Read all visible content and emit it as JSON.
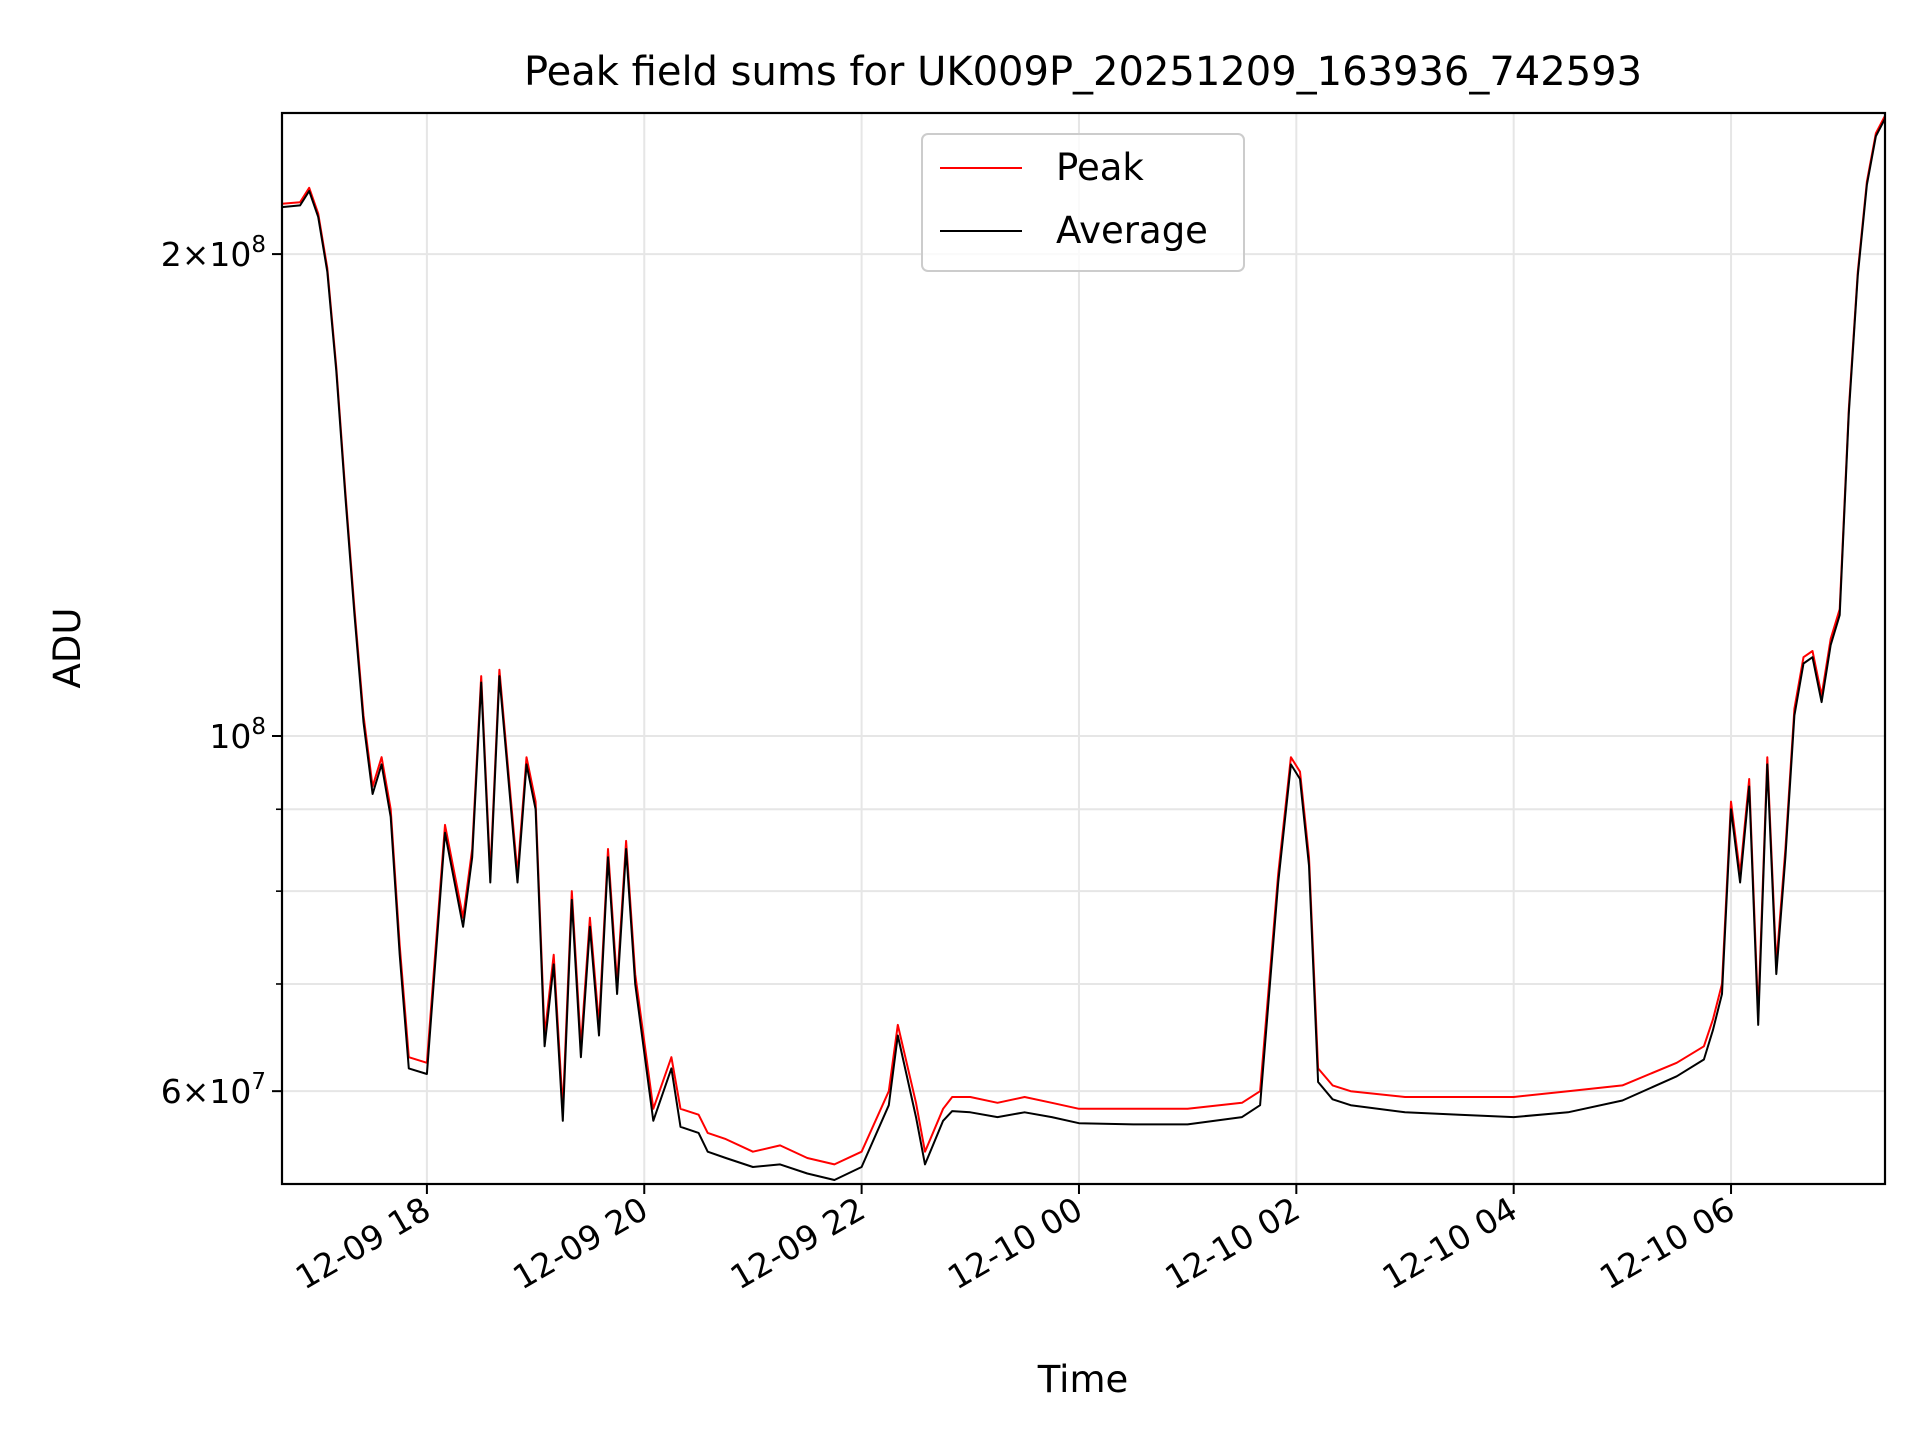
{
  "chart_data": {
    "type": "line",
    "title": "Peak field sums for UK009P_20251209_163936_742593",
    "xlabel": "Time",
    "ylabel": "ADU",
    "x_ticks": [
      "12-09 18",
      "12-09 20",
      "12-09 22",
      "12-10 00",
      "12-10 02",
      "12-10 04",
      "12-10 06"
    ],
    "x_range": [
      "2025-12-09 16:40",
      "2025-12-10 07:25"
    ],
    "y_scale": "log",
    "y_range": [
      52500000,
      245000000
    ],
    "y_major_ticks": [
      {
        "value": 60000000,
        "label_mantissa": "6",
        "label_exp": "7"
      },
      {
        "value": 100000000,
        "label_mantissa": "",
        "label_exp": "8"
      },
      {
        "value": 200000000,
        "label_mantissa": "2",
        "label_exp": "8"
      }
    ],
    "y_minor_ticks": [
      70000000,
      80000000,
      90000000
    ],
    "grid": true,
    "legend_position": "top-center",
    "series": [
      {
        "name": "Peak",
        "color": "#ff0000",
        "x": [
          "2025-12-09 16:40",
          "2025-12-09 16:50",
          "2025-12-09 16:55",
          "2025-12-09 17:00",
          "2025-12-09 17:05",
          "2025-12-09 17:10",
          "2025-12-09 17:15",
          "2025-12-09 17:20",
          "2025-12-09 17:25",
          "2025-12-09 17:30",
          "2025-12-09 17:35",
          "2025-12-09 17:40",
          "2025-12-09 17:45",
          "2025-12-09 17:50",
          "2025-12-09 18:00",
          "2025-12-09 18:10",
          "2025-12-09 18:20",
          "2025-12-09 18:25",
          "2025-12-09 18:30",
          "2025-12-09 18:35",
          "2025-12-09 18:40",
          "2025-12-09 18:45",
          "2025-12-09 18:50",
          "2025-12-09 18:55",
          "2025-12-09 19:00",
          "2025-12-09 19:05",
          "2025-12-09 19:10",
          "2025-12-09 19:15",
          "2025-12-09 19:20",
          "2025-12-09 19:25",
          "2025-12-09 19:30",
          "2025-12-09 19:35",
          "2025-12-09 19:40",
          "2025-12-09 19:45",
          "2025-12-09 19:50",
          "2025-12-09 19:55",
          "2025-12-09 20:05",
          "2025-12-09 20:15",
          "2025-12-09 20:20",
          "2025-12-09 20:30",
          "2025-12-09 20:35",
          "2025-12-09 20:45",
          "2025-12-09 21:00",
          "2025-12-09 21:15",
          "2025-12-09 21:30",
          "2025-12-09 21:45",
          "2025-12-09 22:00",
          "2025-12-09 22:15",
          "2025-12-09 22:20",
          "2025-12-09 22:30",
          "2025-12-09 22:35",
          "2025-12-09 22:45",
          "2025-12-09 22:50",
          "2025-12-09 23:00",
          "2025-12-09 23:15",
          "2025-12-09 23:30",
          "2025-12-09 23:45",
          "2025-12-10 00:00",
          "2025-12-10 00:30",
          "2025-12-10 01:00",
          "2025-12-10 01:30",
          "2025-12-10 01:40",
          "2025-12-10 01:50",
          "2025-12-10 01:57",
          "2025-12-10 02:02",
          "2025-12-10 02:07",
          "2025-12-10 02:12",
          "2025-12-10 02:20",
          "2025-12-10 02:30",
          "2025-12-10 03:00",
          "2025-12-10 03:30",
          "2025-12-10 04:00",
          "2025-12-10 04:30",
          "2025-12-10 05:00",
          "2025-12-10 05:30",
          "2025-12-10 05:45",
          "2025-12-10 05:50",
          "2025-12-10 05:55",
          "2025-12-10 06:00",
          "2025-12-10 06:05",
          "2025-12-10 06:10",
          "2025-12-10 06:15",
          "2025-12-10 06:20",
          "2025-12-10 06:25",
          "2025-12-10 06:30",
          "2025-12-10 06:35",
          "2025-12-10 06:40",
          "2025-12-10 06:45",
          "2025-12-10 06:50",
          "2025-12-10 06:55",
          "2025-12-10 07:00",
          "2025-12-10 07:05",
          "2025-12-10 07:10",
          "2025-12-10 07:15",
          "2025-12-10 07:20",
          "2025-12-10 07:25"
        ],
        "y": [
          215000000,
          215500000,
          220000000,
          212000000,
          196000000,
          170000000,
          142000000,
          120000000,
          103000000,
          93000000,
          97000000,
          90000000,
          74000000,
          63000000,
          62500000,
          88000000,
          77000000,
          85000000,
          109000000,
          82000000,
          110000000,
          95000000,
          82000000,
          97000000,
          91000000,
          65000000,
          73000000,
          58500000,
          80000000,
          64000000,
          77000000,
          66000000,
          85000000,
          70000000,
          86000000,
          71000000,
          58500000,
          63000000,
          58500000,
          58000000,
          56500000,
          56000000,
          55000000,
          55500000,
          54500000,
          54000000,
          55000000,
          60000000,
          66000000,
          59000000,
          55000000,
          58500000,
          59500000,
          59500000,
          59000000,
          59500000,
          59000000,
          58500000,
          58500000,
          58500000,
          59000000,
          60000000,
          82000000,
          97000000,
          95000000,
          84000000,
          62000000,
          60500000,
          60000000,
          59500000,
          59500000,
          59500000,
          60000000,
          60500000,
          62500000,
          64000000,
          66500000,
          70000000,
          91000000,
          82000000,
          94000000,
          67000000,
          97000000,
          72000000,
          85000000,
          104000000,
          112000000,
          113000000,
          106000000,
          115000000,
          120000000,
          160000000,
          195000000,
          222000000,
          238000000,
          244000000
        ]
      },
      {
        "name": "Average",
        "color": "#000000",
        "x": [
          "2025-12-09 16:40",
          "2025-12-09 16:50",
          "2025-12-09 16:55",
          "2025-12-09 17:00",
          "2025-12-09 17:05",
          "2025-12-09 17:10",
          "2025-12-09 17:15",
          "2025-12-09 17:20",
          "2025-12-09 17:25",
          "2025-12-09 17:30",
          "2025-12-09 17:35",
          "2025-12-09 17:40",
          "2025-12-09 17:45",
          "2025-12-09 17:50",
          "2025-12-09 18:00",
          "2025-12-09 18:10",
          "2025-12-09 18:20",
          "2025-12-09 18:25",
          "2025-12-09 18:30",
          "2025-12-09 18:35",
          "2025-12-09 18:40",
          "2025-12-09 18:45",
          "2025-12-09 18:50",
          "2025-12-09 18:55",
          "2025-12-09 19:00",
          "2025-12-09 19:05",
          "2025-12-09 19:10",
          "2025-12-09 19:15",
          "2025-12-09 19:20",
          "2025-12-09 19:25",
          "2025-12-09 19:30",
          "2025-12-09 19:35",
          "2025-12-09 19:40",
          "2025-12-09 19:45",
          "2025-12-09 19:50",
          "2025-12-09 19:55",
          "2025-12-09 20:05",
          "2025-12-09 20:15",
          "2025-12-09 20:20",
          "2025-12-09 20:30",
          "2025-12-09 20:35",
          "2025-12-09 20:45",
          "2025-12-09 21:00",
          "2025-12-09 21:15",
          "2025-12-09 21:30",
          "2025-12-09 21:45",
          "2025-12-09 22:00",
          "2025-12-09 22:15",
          "2025-12-09 22:20",
          "2025-12-09 22:30",
          "2025-12-09 22:35",
          "2025-12-09 22:45",
          "2025-12-09 22:50",
          "2025-12-09 23:00",
          "2025-12-09 23:15",
          "2025-12-09 23:30",
          "2025-12-09 23:45",
          "2025-12-10 00:00",
          "2025-12-10 00:30",
          "2025-12-10 01:00",
          "2025-12-10 01:30",
          "2025-12-10 01:40",
          "2025-12-10 01:50",
          "2025-12-10 01:57",
          "2025-12-10 02:02",
          "2025-12-10 02:07",
          "2025-12-10 02:12",
          "2025-12-10 02:20",
          "2025-12-10 02:30",
          "2025-12-10 03:00",
          "2025-12-10 03:30",
          "2025-12-10 04:00",
          "2025-12-10 04:30",
          "2025-12-10 05:00",
          "2025-12-10 05:30",
          "2025-12-10 05:45",
          "2025-12-10 05:50",
          "2025-12-10 05:55",
          "2025-12-10 06:00",
          "2025-12-10 06:05",
          "2025-12-10 06:10",
          "2025-12-10 06:15",
          "2025-12-10 06:20",
          "2025-12-10 06:25",
          "2025-12-10 06:30",
          "2025-12-10 06:35",
          "2025-12-10 06:40",
          "2025-12-10 06:45",
          "2025-12-10 06:50",
          "2025-12-10 06:55",
          "2025-12-10 07:00",
          "2025-12-10 07:05",
          "2025-12-10 07:10",
          "2025-12-10 07:15",
          "2025-12-10 07:20",
          "2025-12-10 07:25"
        ],
        "y": [
          214000000,
          214500000,
          219000000,
          211000000,
          195000000,
          169000000,
          141000000,
          119000000,
          102000000,
          92000000,
          96000000,
          89000000,
          73000000,
          62000000,
          61500000,
          87000000,
          76000000,
          84000000,
          108000000,
          81000000,
          109000000,
          94000000,
          81000000,
          96000000,
          90000000,
          64000000,
          72000000,
          57500000,
          79000000,
          63000000,
          76000000,
          65000000,
          84000000,
          69000000,
          85000000,
          70000000,
          57500000,
          62000000,
          57000000,
          56500000,
          55000000,
          54500000,
          53800000,
          54000000,
          53300000,
          52800000,
          53800000,
          58800000,
          65000000,
          57800000,
          54000000,
          57500000,
          58300000,
          58200000,
          57800000,
          58200000,
          57800000,
          57300000,
          57200000,
          57200000,
          57800000,
          58800000,
          81000000,
          96000000,
          94000000,
          83000000,
          60800000,
          59300000,
          58800000,
          58200000,
          58000000,
          57800000,
          58200000,
          59200000,
          61300000,
          62800000,
          65500000,
          69000000,
          90000000,
          81000000,
          93000000,
          66000000,
          96000000,
          71000000,
          84000000,
          103000000,
          111000000,
          112000000,
          105000000,
          114000000,
          119000000,
          159000000,
          194000000,
          221000000,
          237000000,
          243000000
        ]
      }
    ]
  }
}
